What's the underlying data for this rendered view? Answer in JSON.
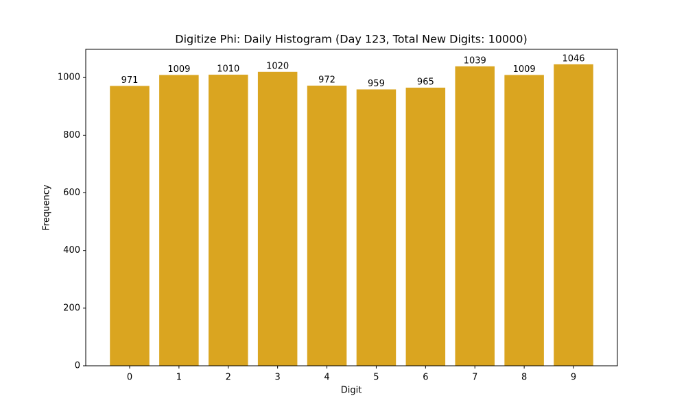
{
  "chart_data": {
    "type": "bar",
    "title": "Digitize Phi: Daily Histogram (Day 123, Total New Digits: 10000)",
    "x_label": "Digit",
    "y_label": "Frequency",
    "categories": [
      "0",
      "1",
      "2",
      "3",
      "4",
      "5",
      "6",
      "7",
      "8",
      "9"
    ],
    "values": [
      971,
      1009,
      1010,
      1020,
      972,
      959,
      965,
      1039,
      1009,
      1046
    ],
    "color": "#daa520",
    "ylim": [
      0,
      1098
    ],
    "yticks": [
      0,
      200,
      400,
      600,
      800,
      1000
    ],
    "grid": false
  }
}
